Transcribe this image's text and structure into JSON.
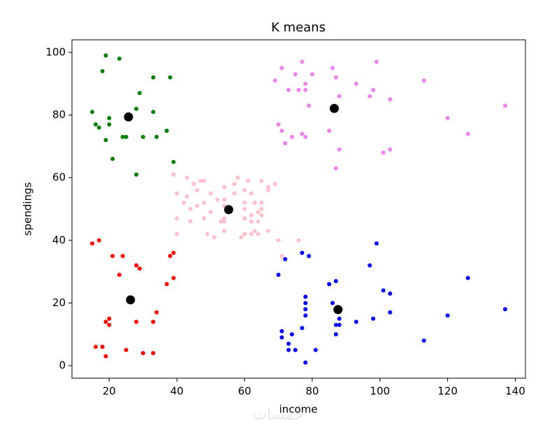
{
  "chart_data": {
    "type": "scatter",
    "title": "K means",
    "x_label": "income",
    "y_label": "spendings",
    "watermark": "خمسات",
    "xlim": [
      9,
      143
    ],
    "ylim": [
      -4,
      104
    ],
    "xticks": [
      20,
      40,
      60,
      80,
      100,
      120,
      140
    ],
    "yticks": [
      0,
      20,
      40,
      60,
      80,
      100
    ],
    "series": [
      {
        "color": "#008000",
        "x": [
          19,
          23,
          18,
          33,
          38,
          29,
          15,
          20,
          33,
          28,
          16,
          17,
          20,
          24,
          25,
          30,
          34,
          37,
          19,
          21,
          39,
          28
        ],
        "y": [
          99,
          98,
          94,
          92,
          92,
          87,
          81,
          79,
          81,
          82,
          77,
          76,
          77,
          73,
          73,
          73,
          73,
          75,
          72,
          66,
          65,
          61
        ]
      },
      {
        "color": "#ee82ee",
        "x": [
          69,
          71,
          73,
          75,
          77,
          80,
          78,
          78,
          76,
          79,
          86,
          87,
          88,
          70,
          71,
          74,
          72,
          77,
          78,
          85,
          88,
          87,
          93,
          98,
          97,
          99,
          103,
          101,
          103,
          113,
          120,
          126,
          137
        ],
        "y": [
          91,
          95,
          88,
          93,
          97,
          93,
          90,
          88,
          88,
          83,
          95,
          92,
          86,
          77,
          75,
          73,
          71,
          74,
          73,
          75,
          69,
          63,
          90,
          88,
          86,
          97,
          85,
          68,
          69,
          91,
          79,
          74,
          83
        ]
      },
      {
        "color": "#ffc0cb",
        "x": [
          39,
          40,
          40,
          40,
          42,
          43,
          43,
          44,
          44,
          46,
          46,
          47,
          48,
          48,
          48,
          49,
          50,
          50,
          54,
          54,
          54,
          54,
          54,
          54,
          57,
          57,
          58,
          59,
          60,
          60,
          60,
          60,
          60,
          61,
          62,
          62,
          62,
          62,
          63,
          63,
          64,
          64,
          64,
          65,
          65,
          65,
          65,
          67,
          67,
          67,
          69,
          70,
          71,
          76,
          53,
          51,
          45,
          52
        ],
        "y": [
          61,
          55,
          47,
          42,
          52,
          54,
          60,
          50,
          46,
          51,
          56,
          59,
          59,
          47,
          52,
          42,
          55,
          49,
          47,
          53,
          57,
          51,
          46,
          43,
          58,
          55,
          60,
          41,
          52,
          47,
          50,
          42,
          56,
          59,
          42,
          46,
          48,
          55,
          43,
          52,
          46,
          49,
          42,
          48,
          50,
          52,
          59,
          43,
          56,
          57,
          58,
          40,
          35,
          40,
          46,
          41,
          58,
          53
        ]
      },
      {
        "color": "#ff0000",
        "x": [
          15,
          17,
          21,
          24,
          23,
          28,
          29,
          38,
          39,
          37,
          39,
          19,
          20,
          20,
          28,
          33,
          34,
          16,
          18,
          19,
          25,
          30,
          33
        ],
        "y": [
          39,
          40,
          35,
          35,
          29,
          32,
          31,
          35,
          36,
          26,
          28,
          14,
          15,
          13,
          14,
          14,
          17,
          6,
          6,
          3,
          5,
          4,
          4
        ]
      },
      {
        "color": "#0000ff",
        "x": [
          72,
          70,
          77,
          79,
          85,
          87,
          86,
          78,
          78,
          78,
          78,
          77,
          71,
          71,
          74,
          73,
          73,
          75,
          81,
          78,
          87,
          88,
          88,
          87,
          93,
          97,
          99,
          101,
          103,
          98,
          103,
          113,
          120,
          126,
          137
        ],
        "y": [
          34,
          29,
          36,
          35,
          26,
          27,
          20,
          22,
          20,
          18,
          16,
          12,
          11,
          9,
          10,
          7,
          5,
          5,
          5,
          1,
          13,
          13,
          15,
          10,
          14,
          32,
          39,
          24,
          23,
          15,
          17,
          8,
          16,
          28,
          18
        ]
      },
      {
        "color": "#000000",
        "x": [
          25.7,
          86.5,
          55.3,
          26.3,
          87.6
        ],
        "y": [
          79.4,
          82.1,
          49.8,
          21.0,
          17.9
        ]
      }
    ]
  }
}
